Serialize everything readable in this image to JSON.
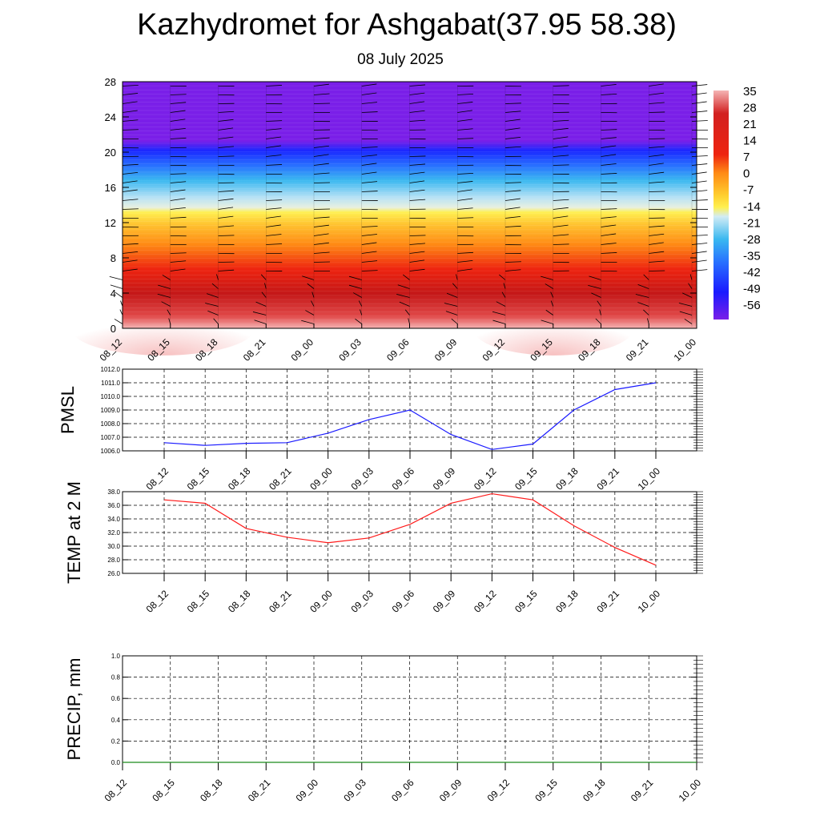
{
  "chart_data": [
    {
      "type": "heatmap",
      "title": "Kazhydromet for Ashgabat(37.95 58.38)",
      "subtitle": "08 July 2025",
      "x_tick_labels": [
        "08_12",
        "08_15",
        "08_18",
        "08_21",
        "09_00",
        "09_03",
        "09_06",
        "09_09",
        "09_12",
        "09_15",
        "09_18",
        "09_21",
        "10_00"
      ],
      "y_tick_labels": [
        "0",
        "4",
        "8",
        "12",
        "16",
        "20",
        "24",
        "28"
      ],
      "ylim": [
        0,
        28
      ],
      "colorbar_labels": [
        "35",
        "28",
        "21",
        "14",
        "7",
        "0",
        "-7",
        "-14",
        "-21",
        "-28",
        "-35",
        "-42",
        "-49",
        "-56"
      ],
      "colorbar_range": [
        -63,
        40
      ],
      "colors": {
        "cold": "#7a1fe8",
        "blue": "#1e3cff",
        "cyan": "#28b4f0",
        "pale": "#d2ecf5",
        "yellow": "#ffe640",
        "orange": "#ff9a14",
        "red": "#ee2410",
        "darkred": "#c41818",
        "pink": "#f5b4b4"
      },
      "overlay": "wind-barbs"
    },
    {
      "type": "line",
      "ylabel": "PMSL",
      "categories": [
        "08_12",
        "08_15",
        "08_18",
        "08_21",
        "09_00",
        "09_03",
        "09_06",
        "09_09",
        "09_12",
        "09_15",
        "09_18",
        "09_21",
        "10_00"
      ],
      "y_tick_labels": [
        "1006.0",
        "1007.0",
        "1008.0",
        "1009.0",
        "1010.0",
        "1011.0",
        "1012.0"
      ],
      "ylim": [
        1006,
        1012
      ],
      "series": [
        {
          "values": [
            1006.6,
            1006.4,
            1006.55,
            1006.6,
            1007.3,
            1008.3,
            1009.0,
            1007.2,
            1006.1,
            1006.5,
            1009.0,
            1010.5,
            1011.0
          ],
          "color": "#1a1aff"
        }
      ],
      "grid": true
    },
    {
      "type": "line",
      "ylabel": "TEMP at 2 M",
      "categories": [
        "08_12",
        "08_15",
        "08_18",
        "08_21",
        "09_00",
        "09_03",
        "09_06",
        "09_09",
        "09_12",
        "09_15",
        "09_18",
        "09_21",
        "10_00"
      ],
      "y_tick_labels": [
        "26.0",
        "28.0",
        "30.0",
        "32.0",
        "34.0",
        "36.0",
        "38.0"
      ],
      "ylim": [
        26,
        38
      ],
      "series": [
        {
          "values": [
            36.8,
            36.3,
            32.6,
            31.3,
            30.5,
            31.2,
            33.2,
            36.3,
            37.7,
            36.8,
            33.0,
            29.8,
            27.2
          ],
          "color": "#ff1a1a"
        }
      ],
      "grid": true
    },
    {
      "type": "line",
      "ylabel": "PRECIP, mm",
      "x_tick_labels": [
        "08_12",
        "08_15",
        "08_18",
        "08_21",
        "09_00",
        "09_03",
        "09_06",
        "09_09",
        "09_12",
        "09_15",
        "09_18",
        "09_21",
        "10_00"
      ],
      "y_tick_labels": [
        "0.0",
        "0.2",
        "0.4",
        "0.6",
        "0.8",
        "1.0"
      ],
      "ylim": [
        0,
        1
      ],
      "series": [
        {
          "values": [
            0,
            0,
            0,
            0,
            0,
            0,
            0,
            0,
            0,
            0,
            0,
            0,
            0
          ],
          "color": "#1a8a1a"
        }
      ],
      "grid": true
    }
  ]
}
